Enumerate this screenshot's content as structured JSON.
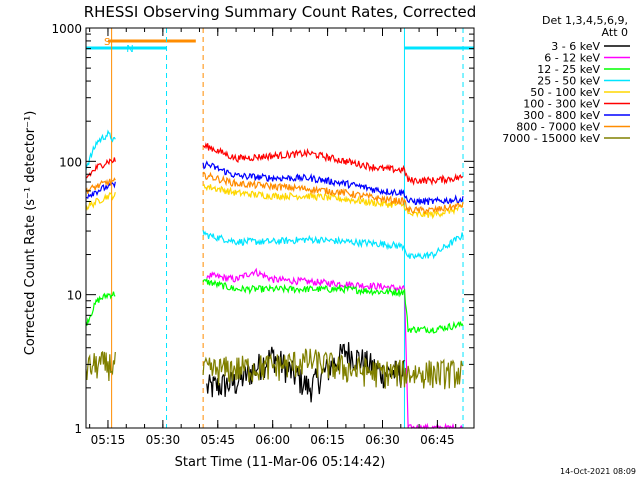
{
  "chart_data": {
    "type": "line",
    "title": "RHESSI Observing Summary Count Rates, Corrected",
    "xlabel": "Start Time (11-Mar-06 05:14:42)",
    "ylabel": "Corrected Count Rate (s⁻¹ detector⁻¹)",
    "yscale": "log",
    "xlim": [
      "05:09",
      "06:55"
    ],
    "ylim": [
      1,
      1000
    ],
    "x_ticks": [
      "05:15",
      "05:30",
      "05:45",
      "06:00",
      "06:15",
      "06:30",
      "06:45"
    ],
    "y_ticks": [
      {
        "value": 1,
        "label": "1"
      },
      {
        "value": 10,
        "label": "10"
      },
      {
        "value": 100,
        "label": "100"
      },
      {
        "value": 1000,
        "label": "1000"
      }
    ],
    "legend": {
      "placement": "right",
      "header": [
        "Det 1,3,4,5,6,9,",
        "Att 0"
      ]
    },
    "data_gaps": [
      {
        "start": "05:17",
        "end": "05:41"
      }
    ],
    "flags": [
      {
        "label": "S",
        "color": "#ff8c00",
        "start": "05:15",
        "end": "05:39"
      },
      {
        "label": "N",
        "color": "#00e5ff",
        "start": "05:09",
        "end": "05:31"
      },
      {
        "label": "",
        "color": "#00e5ff",
        "start": "06:36",
        "end": "06:55"
      }
    ],
    "vlines": [
      {
        "time": "05:16",
        "color": "#ff8c00",
        "style": "solid"
      },
      {
        "time": "05:31",
        "color": "#00e5ff",
        "style": "dashed"
      },
      {
        "time": "05:41",
        "color": "#ff8c00",
        "style": "dashed"
      },
      {
        "time": "06:36",
        "color": "#00e5ff",
        "style": "solid"
      },
      {
        "time": "06:52",
        "color": "#00e5ff",
        "style": "dashed"
      }
    ],
    "series": [
      {
        "name": "3 - 6 keV",
        "color": "#000000",
        "x": [
          "05:42",
          "05:50",
          "06:00",
          "06:10",
          "06:20",
          "06:30",
          "06:36"
        ],
        "values": [
          2.0,
          2.2,
          3.5,
          2.0,
          3.8,
          2.6,
          2.6
        ]
      },
      {
        "name": "6 - 12 keV",
        "color": "#ff00ff",
        "x": [
          "05:42",
          "05:50",
          "05:55",
          "06:00",
          "06:10",
          "06:20",
          "06:30",
          "06:36",
          "06:37",
          "06:52"
        ],
        "values": [
          14,
          13,
          15,
          13,
          12.5,
          12,
          11.5,
          11,
          1.0,
          1.0
        ]
      },
      {
        "name": "12 - 25 keV",
        "color": "#00ff00",
        "x": [
          "05:09",
          "05:12",
          "05:15",
          "05:42",
          "05:50",
          "06:00",
          "06:10",
          "06:20",
          "06:30",
          "06:36",
          "06:37",
          "06:44",
          "06:52"
        ],
        "values": [
          6,
          9,
          10,
          12.5,
          11,
          11,
          11,
          11,
          10.5,
          10.5,
          5.5,
          5.5,
          6
        ]
      },
      {
        "name": "25 - 50 keV",
        "color": "#00e5ff",
        "x": [
          "05:09",
          "05:12",
          "05:15",
          "05:42",
          "05:50",
          "06:00",
          "06:10",
          "06:20",
          "06:30",
          "06:36",
          "06:37",
          "06:44",
          "06:52"
        ],
        "values": [
          90,
          140,
          160,
          28,
          25,
          25,
          26,
          25,
          24,
          23,
          19,
          20,
          28
        ]
      },
      {
        "name": "50 - 100 keV",
        "color": "#ffd700",
        "x": [
          "05:09",
          "05:12",
          "05:15",
          "05:42",
          "05:50",
          "06:00",
          "06:10",
          "06:20",
          "06:30",
          "06:36",
          "06:37",
          "06:44",
          "06:52"
        ],
        "values": [
          45,
          50,
          55,
          65,
          58,
          55,
          55,
          52,
          48,
          47,
          40,
          40,
          45
        ]
      },
      {
        "name": "100 - 300 keV",
        "color": "#ff0000",
        "x": [
          "05:09",
          "05:12",
          "05:15",
          "05:42",
          "05:50",
          "06:00",
          "06:10",
          "06:20",
          "06:30",
          "06:36",
          "06:37",
          "06:44",
          "06:52"
        ],
        "values": [
          75,
          90,
          100,
          130,
          105,
          110,
          115,
          100,
          88,
          86,
          72,
          72,
          76
        ]
      },
      {
        "name": "300 - 800 keV",
        "color": "#0000ff",
        "x": [
          "05:09",
          "05:12",
          "05:15",
          "05:42",
          "05:50",
          "06:00",
          "06:10",
          "06:20",
          "06:30",
          "06:36",
          "06:37",
          "06:44",
          "06:52"
        ],
        "values": [
          55,
          60,
          65,
          95,
          78,
          75,
          75,
          68,
          60,
          58,
          50,
          50,
          52
        ]
      },
      {
        "name": "800 - 7000 keV",
        "color": "#ff8c00",
        "x": [
          "05:09",
          "05:12",
          "05:15",
          "05:42",
          "05:50",
          "06:00",
          "06:10",
          "06:20",
          "06:30",
          "06:36",
          "06:37",
          "06:44",
          "06:52"
        ],
        "values": [
          60,
          65,
          70,
          78,
          68,
          65,
          62,
          58,
          52,
          50,
          43,
          43,
          47
        ]
      },
      {
        "name": "7000 - 15000 keV",
        "color": "#808000",
        "x": [
          "05:09",
          "05:12",
          "05:15",
          "05:42",
          "05:50",
          "06:00",
          "06:10",
          "06:20",
          "06:30",
          "06:36",
          "06:44",
          "06:52"
        ],
        "values": [
          2.8,
          3.0,
          3.0,
          2.7,
          2.8,
          2.9,
          3.2,
          2.8,
          2.6,
          2.6,
          2.6,
          2.6
        ]
      }
    ]
  },
  "footer": {
    "date_stamp": "14-Oct-2021 08:09"
  }
}
